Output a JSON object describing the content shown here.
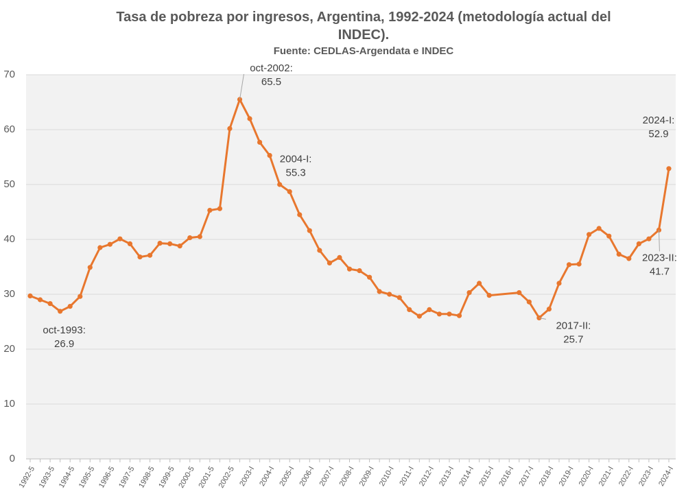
{
  "chart_data": {
    "type": "line",
    "title": "Tasa de pobreza por ingresos, Argentina, 1992-2024 (metodología actual del INDEC).",
    "subtitle": "Fuente: CEDLAS-Argendata e INDEC",
    "categories": [
      "1992-5",
      null,
      "1993-5",
      null,
      "1994-5",
      null,
      "1995-5",
      null,
      "1996-5",
      null,
      "1997-5",
      null,
      "1998-5",
      null,
      "1999-5",
      null,
      "2000-5",
      null,
      "2001-5",
      null,
      "2002-5",
      null,
      "2003-I",
      null,
      "2004-I",
      null,
      "2005-I",
      null,
      "2006-I",
      null,
      "2007-I",
      null,
      "2008-I",
      null,
      "2009-I",
      null,
      "2010-I",
      null,
      "2011-I",
      null,
      "2012-I",
      null,
      "2013-I",
      null,
      "2014-I",
      null,
      "2015-I",
      null,
      "2016-I",
      null,
      "2017-I",
      null,
      "2018-I",
      null,
      "2019-I",
      null,
      "2020-I",
      null,
      "2021-I",
      null,
      "2022-I",
      null,
      "2023-I",
      null,
      "2024-I"
    ],
    "series": [
      {
        "name": "Tasa de pobreza",
        "color": "#e8772e",
        "values": [
          29.7,
          29.0,
          28.3,
          26.9,
          27.8,
          29.6,
          34.9,
          38.5,
          39.1,
          40.1,
          39.2,
          36.8,
          37.1,
          39.3,
          39.2,
          38.8,
          40.3,
          40.5,
          45.3,
          45.6,
          60.2,
          65.5,
          62.0,
          57.7,
          55.3,
          50.0,
          48.7,
          44.5,
          41.6,
          38.0,
          35.7,
          36.7,
          34.6,
          34.3,
          33.1,
          30.5,
          30.0,
          29.4,
          27.2,
          26.0,
          27.2,
          26.4,
          26.4,
          26.1,
          30.3,
          32.0,
          29.8,
          null,
          null,
          30.3,
          28.6,
          25.7,
          27.3,
          32.0,
          35.4,
          35.5,
          40.9,
          42.0,
          40.6,
          37.3,
          36.5,
          39.2,
          40.1,
          41.7,
          52.9
        ]
      }
    ],
    "annotations": [
      {
        "text": "oct-1993:",
        "index": 3
      },
      {
        "text": "oct-2002:",
        "index": 21
      },
      {
        "text": "2004-I:",
        "index": 24
      },
      {
        "text": "2017-II:",
        "index": 51
      },
      {
        "text": "2023-II:",
        "index": 63
      },
      {
        "text": "2024-I:",
        "index": 64
      }
    ],
    "ylim": [
      0,
      70
    ],
    "yticks": [
      0,
      10,
      20,
      30,
      40,
      50,
      60,
      70
    ],
    "grid": true
  }
}
